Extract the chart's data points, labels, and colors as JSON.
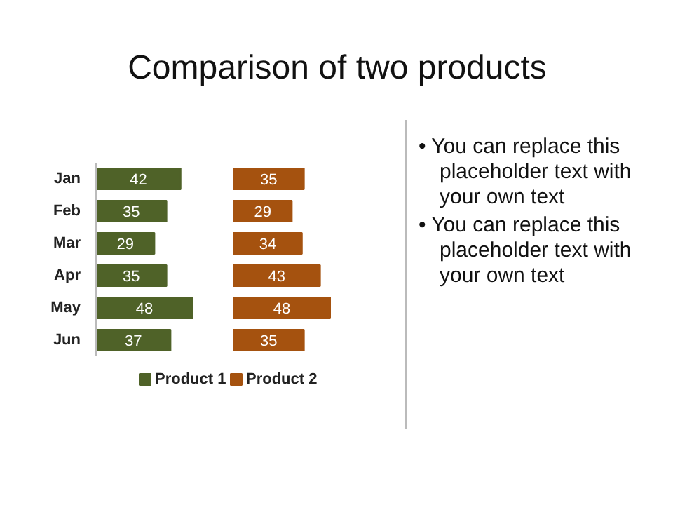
{
  "chart_data": [
    {
      "type": "bar",
      "orientation": "horizontal",
      "title": "Comparison of two products",
      "categories": [
        "Jan",
        "Feb",
        "Mar",
        "Apr",
        "May",
        "Jun"
      ],
      "series": [
        {
          "name": "Product 1",
          "color": "#4f6228",
          "values": [
            42,
            35,
            29,
            35,
            48,
            37
          ]
        }
      ],
      "data_labels": true,
      "legend": "bottom",
      "annotations": [
        "• You can replace this placeholder text with your own text",
        "• You can replace this placeholder text with your own text"
      ]
    },
    {
      "type": "bar",
      "orientation": "horizontal",
      "categories": [
        null,
        null,
        null,
        null,
        null,
        null
      ],
      "series": [
        {
          "name": "Product 2",
          "color": "#a5520f",
          "values": [
            35,
            29,
            34,
            43,
            48,
            35
          ]
        }
      ],
      "data_labels": true,
      "legend": "bottom"
    }
  ]
}
